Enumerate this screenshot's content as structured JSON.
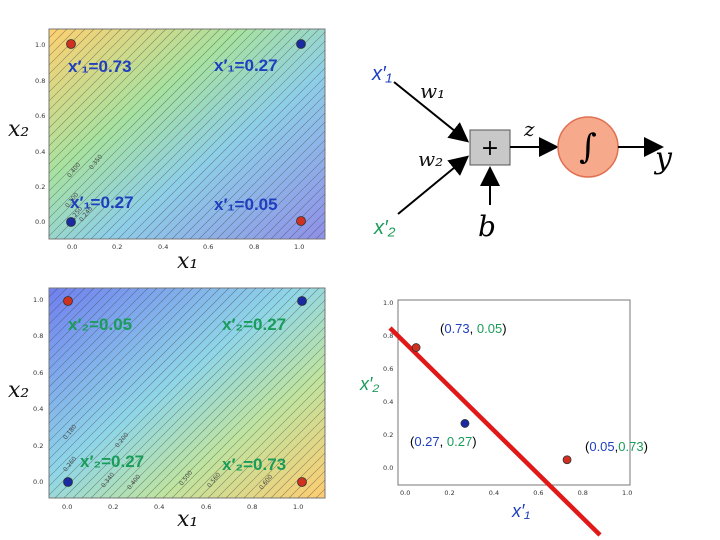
{
  "colors": {
    "red_point": "#d03020",
    "blue_point": "#1a2aa0",
    "blue_text": "#1f3fbf",
    "green_text": "#1a9c5a",
    "boundary": "#e01818",
    "sigmoid_fill": "#f7a98c",
    "sum_node": "#c8c8c8"
  },
  "top_plot": {
    "ylabel": "x₂",
    "xlabel": "x₁",
    "labels": [
      "x′₁=0.73",
      "x′₁=0.27",
      "x′₁=0.27",
      "x′₁=0.05"
    ],
    "contours": [
      "0.400",
      "0.350",
      "0.300",
      "0.250",
      "0.240"
    ],
    "ticks_x": [
      "0.0",
      "0.2",
      "0.4",
      "0.6",
      "0.8",
      "1.0"
    ],
    "ticks_y": [
      "0.0",
      "0.2",
      "0.4",
      "0.6",
      "0.8",
      "1.0"
    ]
  },
  "bottom_plot": {
    "ylabel": "x₂",
    "xlabel": "x₁",
    "labels": [
      "x′₂=0.05",
      "x′₂=0.27",
      "x′₂=0.27",
      "x′₂=0.73"
    ],
    "contours": [
      "0.180",
      "0.200",
      "0.260",
      "0.340",
      "0.400",
      "0.500",
      "0.560",
      "0.600"
    ],
    "ticks_x": [
      "0.0",
      "0.2",
      "0.4",
      "0.6",
      "0.8",
      "1.0"
    ],
    "ticks_y": [
      "0.0",
      "0.2",
      "0.4",
      "0.6",
      "0.8",
      "1.0"
    ]
  },
  "neuron": {
    "in1": "x′₁",
    "in2": "x′₂",
    "w1": "w₁",
    "w2": "w₂",
    "sum": "+",
    "z": "z",
    "sigma": "∫",
    "y": "y",
    "b": "b"
  },
  "scatter": {
    "ylabel": "x′₂",
    "xlabel": "x′₁",
    "points": [
      {
        "x": 0.05,
        "y": 0.73,
        "class": "red"
      },
      {
        "x": 0.27,
        "y": 0.27,
        "class": "blue"
      },
      {
        "x": 0.73,
        "y": 0.05,
        "class": "red"
      }
    ],
    "coords": [
      {
        "open": "(",
        "a": "0.73",
        "sep": ", ",
        "b": "0.05",
        "close": ")"
      },
      {
        "open": "(",
        "a": "0.27",
        "sep": ", ",
        "b": "0.27",
        "close": ")"
      },
      {
        "open": "(",
        "a": "0.05",
        "sep": ",",
        "b": "0.73",
        "close": ")"
      }
    ],
    "ticks_x": [
      "0.0",
      "0.2",
      "0.4",
      "0.6",
      "0.8",
      "1.0"
    ],
    "ticks_y": [
      "0.0",
      "0.2",
      "0.4",
      "0.6",
      "0.8",
      "1.0"
    ]
  }
}
